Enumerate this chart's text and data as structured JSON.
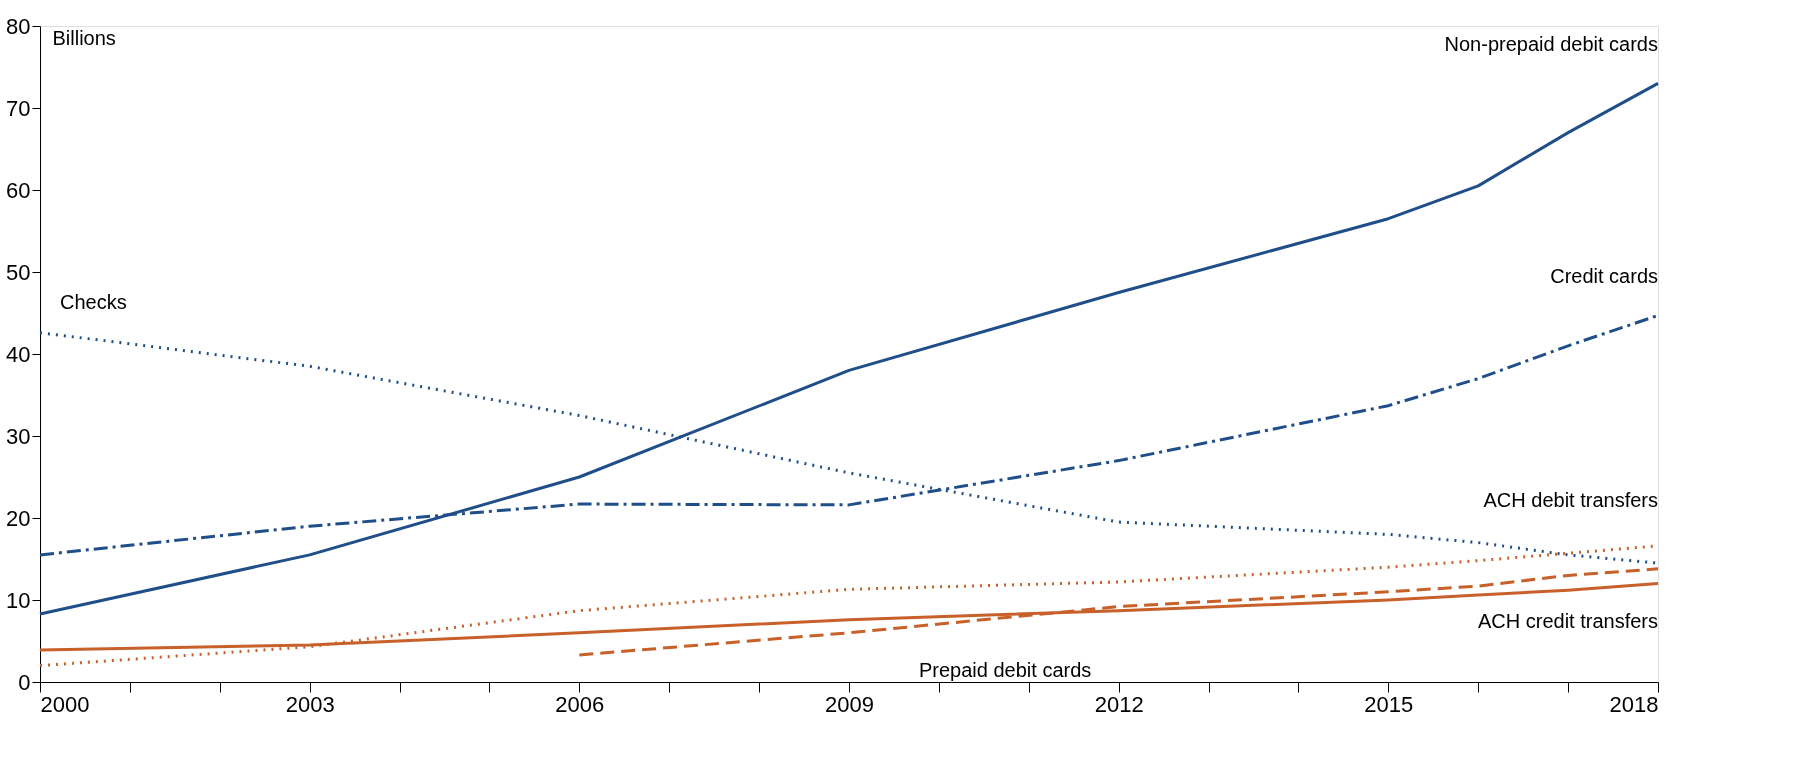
{
  "chart_data": {
    "type": "line",
    "ylabel": "Billions",
    "x": [
      2000,
      2003,
      2006,
      2009,
      2012,
      2015,
      2016,
      2017,
      2018
    ],
    "series": [
      {
        "name": "Non-prepaid debit cards",
        "color": "#1f4e89",
        "line_style": "solid",
        "values": [
          8.3,
          15.5,
          25,
          38,
          47.5,
          56.5,
          60.5,
          67,
          73
        ]
      },
      {
        "name": "Credit cards",
        "color": "#1f4e89",
        "line_style": "dashdot",
        "values": [
          15.5,
          19,
          21.7,
          21.6,
          27,
          33.7,
          37,
          41,
          44.7
        ]
      },
      {
        "name": "Checks",
        "color": "#1f4e89",
        "line_style": "dotted",
        "values": [
          42.6,
          38.5,
          32.5,
          25.5,
          19.5,
          18,
          17,
          15.5,
          14.5
        ]
      },
      {
        "name": "ACH debit transfers",
        "color": "#c8602a",
        "line_style": "dotted",
        "values": [
          2,
          4.3,
          8.7,
          11.3,
          12.2,
          14,
          14.8,
          15.7,
          16.6
        ]
      },
      {
        "name": "ACH credit transfers",
        "color": "#c8602a",
        "line_style": "solid",
        "values": [
          3.9,
          4.5,
          6,
          7.6,
          8.7,
          10,
          10.6,
          11.2,
          12
        ]
      },
      {
        "name": "Prepaid debit cards",
        "color": "#c8602a",
        "line_style": "dashed",
        "values": [
          null,
          null,
          3.3,
          6,
          9.2,
          11,
          11.7,
          13,
          13.8
        ]
      }
    ],
    "xlim": [
      2000,
      2018
    ],
    "xticks": [
      2000,
      {
        "value": 2001,
        "label": null
      },
      {
        "value": 2002,
        "label": null
      },
      2003,
      {
        "value": 2004,
        "label": null
      },
      {
        "value": 2005,
        "label": null
      },
      2006,
      {
        "value": 2007,
        "label": null
      },
      {
        "value": 2008,
        "label": null
      },
      2009,
      {
        "value": 2010,
        "label": null
      },
      {
        "value": 2011,
        "label": null
      },
      2012,
      {
        "value": 2013,
        "label": null
      },
      {
        "value": 2014,
        "label": null
      },
      2015,
      {
        "value": 2016,
        "label": null
      },
      {
        "value": 2017,
        "label": null
      },
      2018
    ],
    "ylim": [
      0,
      80
    ],
    "yticks": [
      0,
      10,
      20,
      30,
      40,
      50,
      60,
      70,
      80
    ],
    "grid": false
  }
}
